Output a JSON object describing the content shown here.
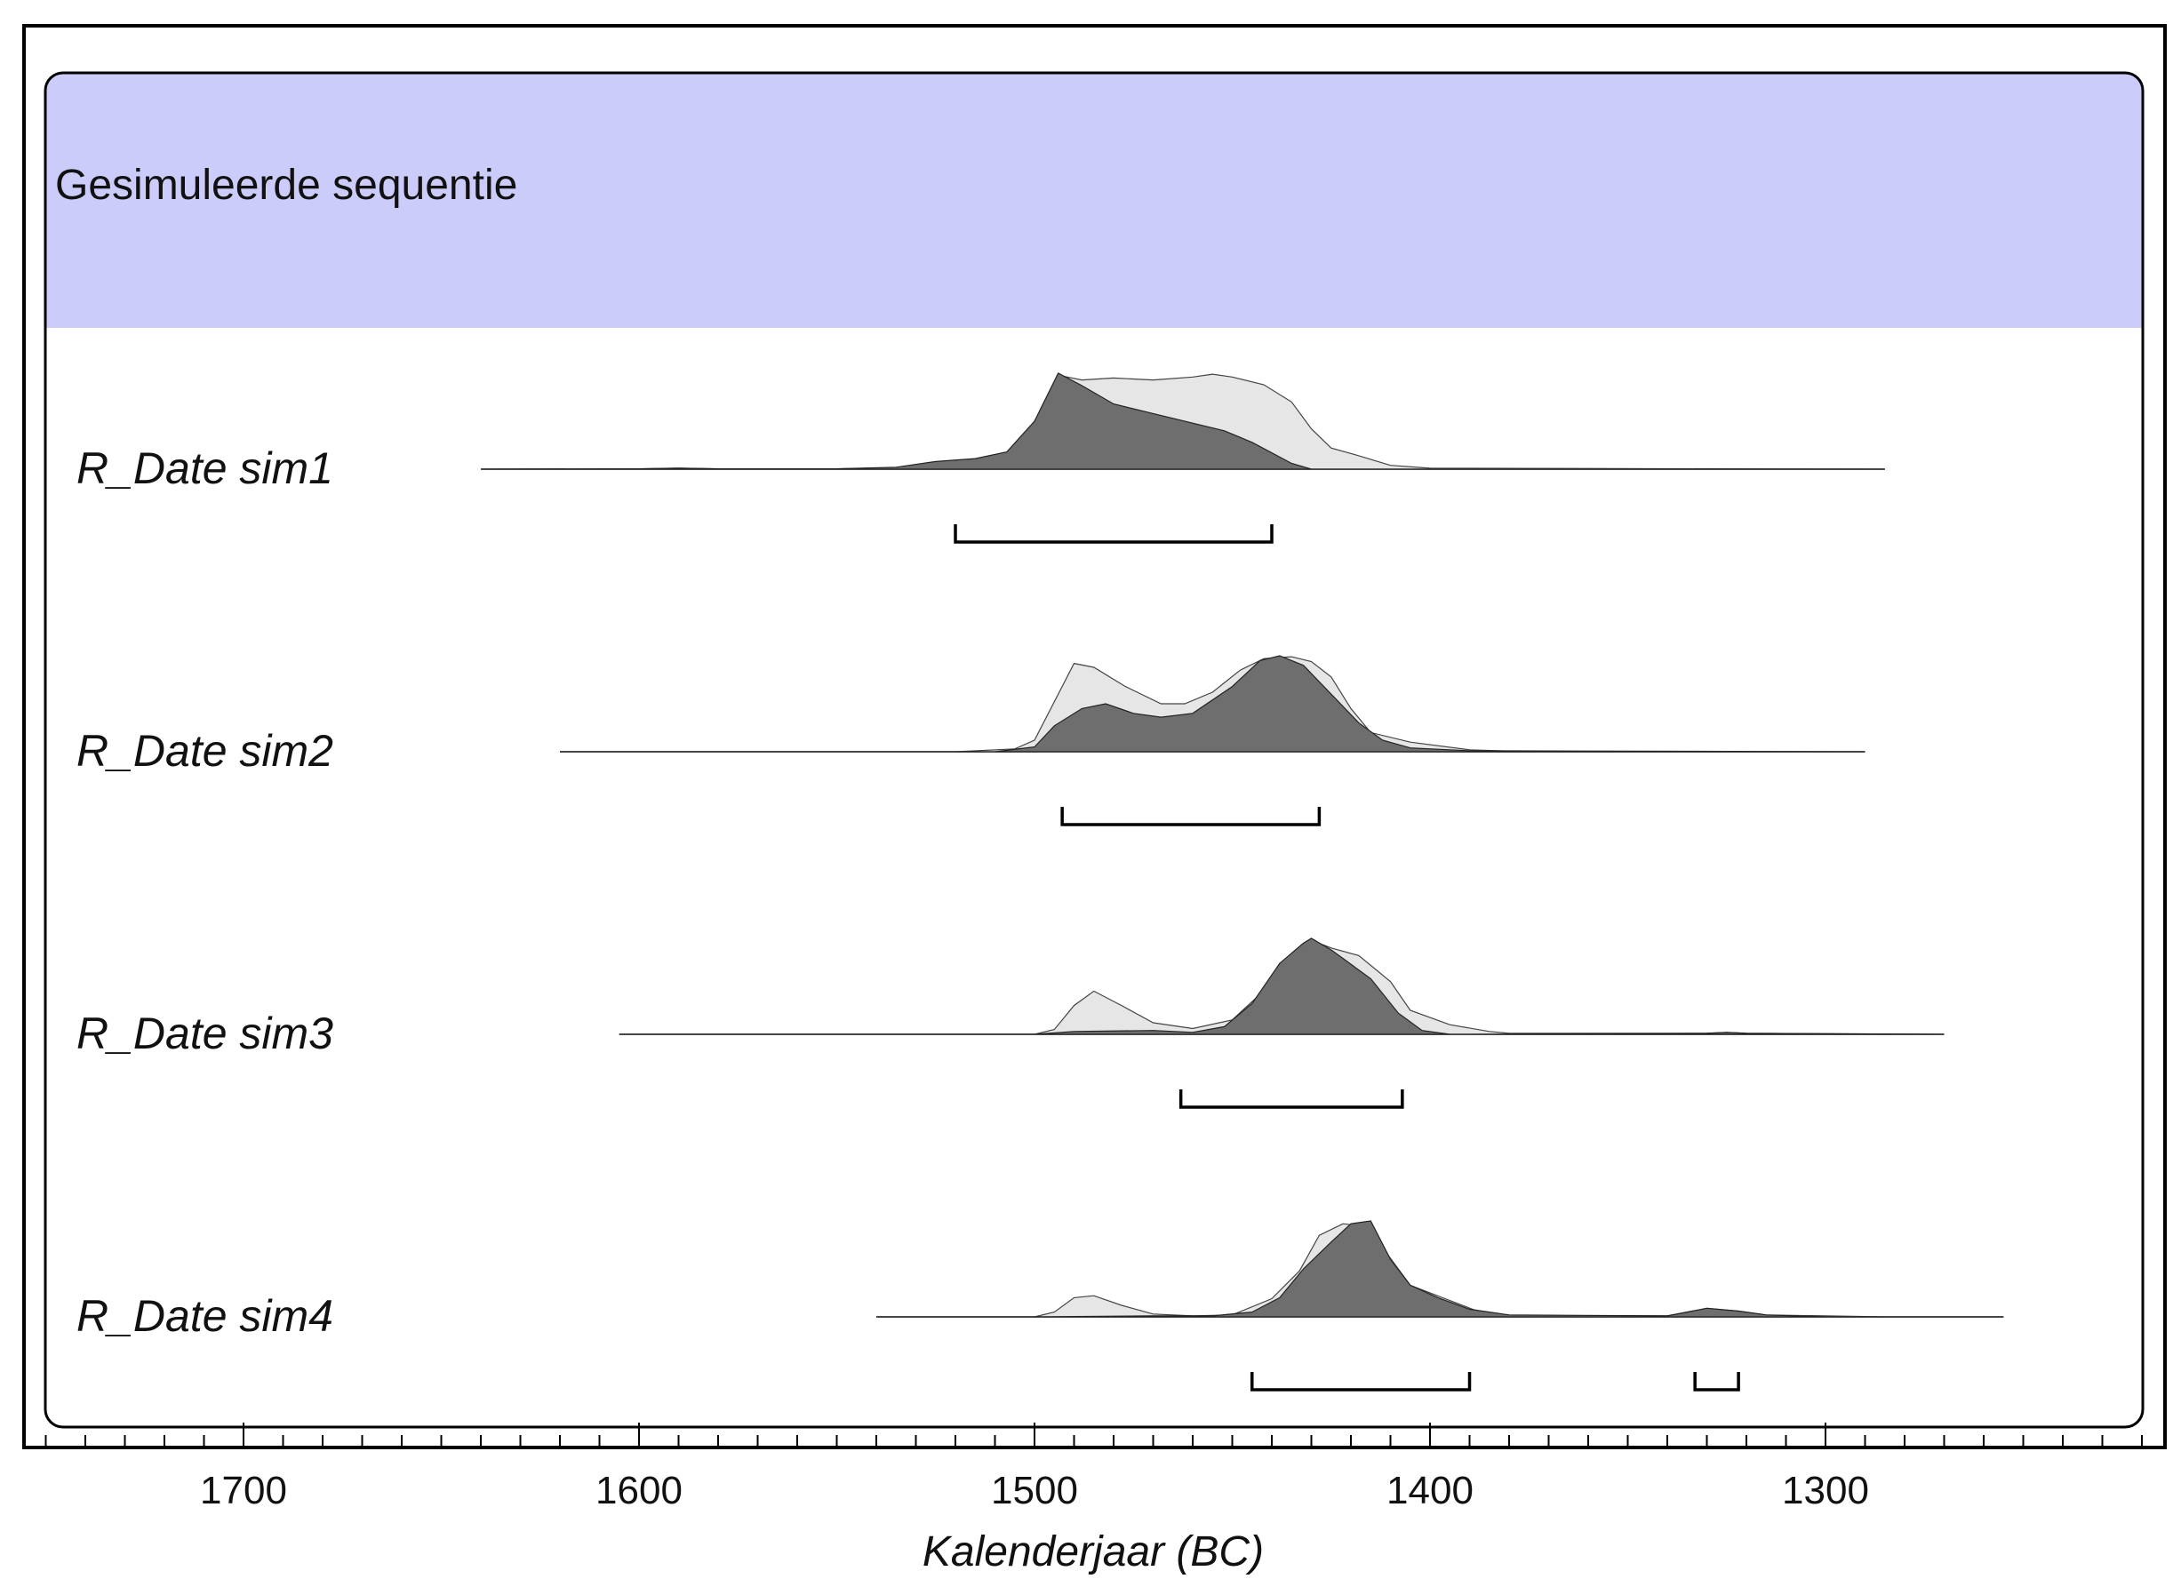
{
  "chart_data": {
    "type": "area",
    "group_label": "Gesimuleerde sequentie",
    "xlabel": "Kalenderjaar (BC)",
    "xlim": [
      1755,
      1215
    ],
    "x_ticks": [
      1700,
      1600,
      1500,
      1400,
      1300
    ],
    "x_minor_step": 10,
    "colors": {
      "group_band": "#ccccfa",
      "prior_fill": "#e6e6e6",
      "posterior_fill": "#6e6e6e",
      "frame": "#000000"
    },
    "series": [
      {
        "name": "R_Date sim1",
        "extent": [
          1640,
          1285
        ],
        "prior": [
          [
            1640,
            0
          ],
          [
            1600,
            0.004
          ],
          [
            1590,
            0.01
          ],
          [
            1580,
            0.004
          ],
          [
            1550,
            0.004
          ],
          [
            1535,
            0.015
          ],
          [
            1520,
            0.06
          ],
          [
            1505,
            0.11
          ],
          [
            1500,
            0.3
          ],
          [
            1495,
            0.65
          ],
          [
            1493,
            0.97
          ],
          [
            1488,
            0.93
          ],
          [
            1480,
            0.95
          ],
          [
            1470,
            0.93
          ],
          [
            1460,
            0.96
          ],
          [
            1455,
            0.99
          ],
          [
            1450,
            0.96
          ],
          [
            1442,
            0.88
          ],
          [
            1435,
            0.7
          ],
          [
            1430,
            0.42
          ],
          [
            1425,
            0.22
          ],
          [
            1418,
            0.14
          ],
          [
            1410,
            0.04
          ],
          [
            1400,
            0.01
          ],
          [
            1285,
            0
          ]
        ],
        "posterior": [
          [
            1640,
            0
          ],
          [
            1600,
            0.004
          ],
          [
            1590,
            0.01
          ],
          [
            1580,
            0.004
          ],
          [
            1550,
            0.004
          ],
          [
            1535,
            0.02
          ],
          [
            1525,
            0.08
          ],
          [
            1515,
            0.11
          ],
          [
            1507,
            0.18
          ],
          [
            1500,
            0.5
          ],
          [
            1494,
            1.0
          ],
          [
            1488,
            0.87
          ],
          [
            1480,
            0.68
          ],
          [
            1470,
            0.58
          ],
          [
            1460,
            0.48
          ],
          [
            1452,
            0.4
          ],
          [
            1445,
            0.28
          ],
          [
            1435,
            0.06
          ],
          [
            1430,
            0
          ],
          [
            1285,
            0
          ]
        ],
        "hpd_ranges": [
          [
            1520,
            1440
          ]
        ]
      },
      {
        "name": "R_Date sim2",
        "extent": [
          1620,
          1290
        ],
        "prior": [
          [
            1620,
            0
          ],
          [
            1520,
            0
          ],
          [
            1505,
            0.03
          ],
          [
            1500,
            0.12
          ],
          [
            1490,
            0.92
          ],
          [
            1485,
            0.88
          ],
          [
            1477,
            0.68
          ],
          [
            1468,
            0.5
          ],
          [
            1462,
            0.5
          ],
          [
            1455,
            0.62
          ],
          [
            1448,
            0.85
          ],
          [
            1442,
            0.97
          ],
          [
            1435,
            0.99
          ],
          [
            1430,
            0.94
          ],
          [
            1425,
            0.78
          ],
          [
            1420,
            0.45
          ],
          [
            1415,
            0.2
          ],
          [
            1405,
            0.1
          ],
          [
            1390,
            0.02
          ],
          [
            1375,
            0
          ],
          [
            1290,
            0
          ]
        ],
        "posterior": [
          [
            1620,
            0
          ],
          [
            1510,
            0
          ],
          [
            1500,
            0.05
          ],
          [
            1495,
            0.27
          ],
          [
            1488,
            0.45
          ],
          [
            1482,
            0.5
          ],
          [
            1475,
            0.4
          ],
          [
            1468,
            0.36
          ],
          [
            1460,
            0.4
          ],
          [
            1450,
            0.68
          ],
          [
            1443,
            0.95
          ],
          [
            1438,
            1.0
          ],
          [
            1432,
            0.9
          ],
          [
            1425,
            0.6
          ],
          [
            1418,
            0.3
          ],
          [
            1412,
            0.12
          ],
          [
            1405,
            0.04
          ],
          [
            1390,
            0.01
          ],
          [
            1290,
            0
          ]
        ],
        "hpd_ranges": [
          [
            1493,
            1428
          ]
        ]
      },
      {
        "name": "R_Date sim3",
        "extent": [
          1605,
          1270
        ],
        "prior": [
          [
            1605,
            0
          ],
          [
            1500,
            0
          ],
          [
            1495,
            0.05
          ],
          [
            1490,
            0.3
          ],
          [
            1485,
            0.45
          ],
          [
            1478,
            0.3
          ],
          [
            1470,
            0.12
          ],
          [
            1460,
            0.06
          ],
          [
            1450,
            0.15
          ],
          [
            1440,
            0.53
          ],
          [
            1430,
            0.98
          ],
          [
            1425,
            0.9
          ],
          [
            1418,
            0.82
          ],
          [
            1410,
            0.55
          ],
          [
            1405,
            0.25
          ],
          [
            1395,
            0.1
          ],
          [
            1385,
            0.03
          ],
          [
            1380,
            0.01
          ],
          [
            1330,
            0.01
          ],
          [
            1325,
            0.02
          ],
          [
            1320,
            0.01
          ],
          [
            1270,
            0
          ]
        ],
        "posterior": [
          [
            1605,
            0
          ],
          [
            1500,
            0
          ],
          [
            1490,
            0.03
          ],
          [
            1470,
            0.04
          ],
          [
            1460,
            0.02
          ],
          [
            1452,
            0.08
          ],
          [
            1445,
            0.32
          ],
          [
            1438,
            0.74
          ],
          [
            1432,
            0.95
          ],
          [
            1430,
            1.0
          ],
          [
            1425,
            0.88
          ],
          [
            1415,
            0.58
          ],
          [
            1408,
            0.22
          ],
          [
            1402,
            0.04
          ],
          [
            1395,
            0
          ],
          [
            1330,
            0.01
          ],
          [
            1325,
            0.02
          ],
          [
            1320,
            0.01
          ],
          [
            1270,
            0
          ]
        ],
        "hpd_ranges": [
          [
            1463,
            1407
          ]
        ]
      },
      {
        "name": "R_Date sim4",
        "extent": [
          1540,
          1255
        ],
        "prior": [
          [
            1540,
            0
          ],
          [
            1500,
            0
          ],
          [
            1495,
            0.05
          ],
          [
            1490,
            0.2
          ],
          [
            1485,
            0.22
          ],
          [
            1478,
            0.12
          ],
          [
            1470,
            0.03
          ],
          [
            1460,
            0.01
          ],
          [
            1450,
            0.02
          ],
          [
            1440,
            0.19
          ],
          [
            1433,
            0.48
          ],
          [
            1428,
            0.85
          ],
          [
            1422,
            0.97
          ],
          [
            1418,
            0.95
          ],
          [
            1412,
            0.72
          ],
          [
            1405,
            0.33
          ],
          [
            1395,
            0.17
          ],
          [
            1388,
            0.06
          ],
          [
            1380,
            0.01
          ],
          [
            1340,
            0.01
          ],
          [
            1335,
            0.05
          ],
          [
            1330,
            0.09
          ],
          [
            1322,
            0.06
          ],
          [
            1315,
            0.02
          ],
          [
            1285,
            0
          ],
          [
            1255,
            0
          ]
        ],
        "posterior": [
          [
            1540,
            0
          ],
          [
            1500,
            0
          ],
          [
            1470,
            0.01
          ],
          [
            1455,
            0.01
          ],
          [
            1445,
            0.05
          ],
          [
            1438,
            0.2
          ],
          [
            1432,
            0.5
          ],
          [
            1425,
            0.78
          ],
          [
            1420,
            0.97
          ],
          [
            1415,
            1.0
          ],
          [
            1410,
            0.6
          ],
          [
            1405,
            0.33
          ],
          [
            1398,
            0.2
          ],
          [
            1390,
            0.08
          ],
          [
            1380,
            0.02
          ],
          [
            1340,
            0.01
          ],
          [
            1335,
            0.05
          ],
          [
            1330,
            0.09
          ],
          [
            1322,
            0.06
          ],
          [
            1315,
            0.02
          ],
          [
            1300,
            0
          ],
          [
            1255,
            0
          ]
        ],
        "hpd_ranges": [
          [
            1445,
            1390
          ],
          [
            1333,
            1322
          ]
        ]
      }
    ]
  }
}
